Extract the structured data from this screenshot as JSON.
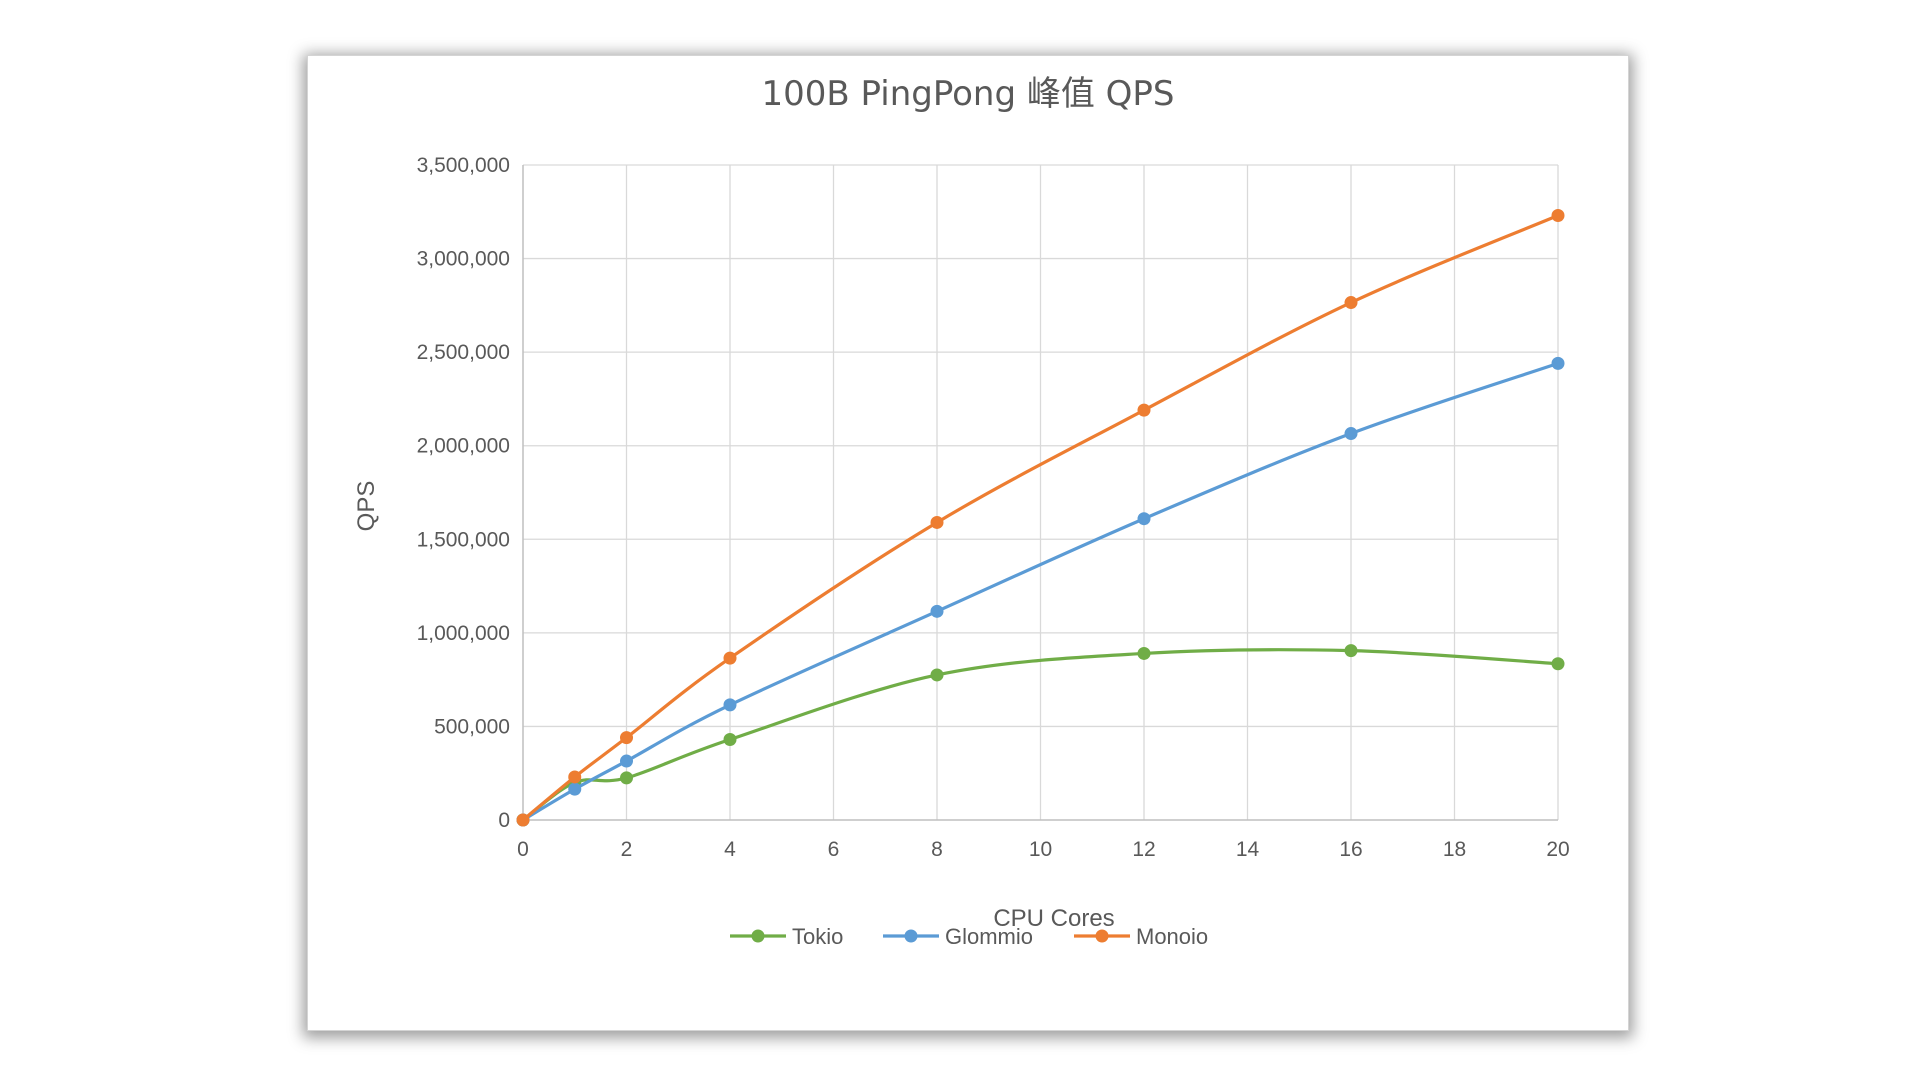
{
  "chart_data": {
    "type": "line",
    "title": "100B PingPong 峰值 QPS",
    "xlabel": "CPU Cores",
    "ylabel": "QPS",
    "x": [
      0,
      1,
      2,
      4,
      8,
      12,
      16,
      20
    ],
    "xlim": [
      0,
      20
    ],
    "ylim": [
      0,
      3500000
    ],
    "x_ticks": [
      "0",
      "2",
      "4",
      "6",
      "8",
      "10",
      "12",
      "14",
      "16",
      "18",
      "20"
    ],
    "y_ticks": [
      "0",
      "500,000",
      "1,000,000",
      "1,500,000",
      "2,000,000",
      "2,500,000",
      "3,000,000",
      "3,500,000"
    ],
    "grid": true,
    "smooth": true,
    "legend_position": "bottom",
    "series": [
      {
        "name": "Tokio",
        "color": "#70ad47",
        "values": [
          0,
          200000,
          225000,
          430000,
          775000,
          890000,
          905000,
          835000
        ]
      },
      {
        "name": "Glommio",
        "color": "#5b9bd5",
        "values": [
          0,
          165000,
          315000,
          615000,
          1115000,
          1610000,
          2065000,
          2440000
        ]
      },
      {
        "name": "Monoio",
        "color": "#ed7d31",
        "values": [
          0,
          230000,
          440000,
          865000,
          1590000,
          2190000,
          2765000,
          3230000
        ]
      }
    ]
  }
}
